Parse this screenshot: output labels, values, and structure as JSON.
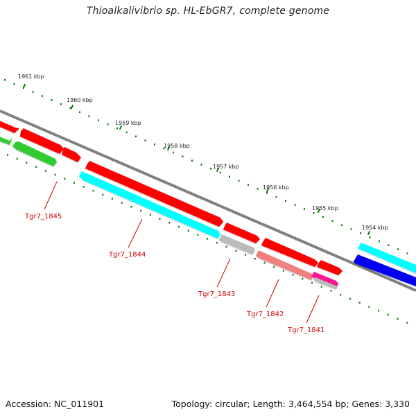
{
  "title": "Thioalkalivibrio sp. HL-EbGR7, complete genome",
  "footer": {
    "accession": "Accession: NC_011901",
    "summary": "Topology: circular; Length: 3,464,554 bp; Genes: 3,330"
  },
  "scale_labels": [
    "1961 kbp",
    "1960 kbp",
    "1959 kbp",
    "1958 kbp",
    "1957 kbp",
    "1956 kbp",
    "1955 kbp",
    "1954 kbp"
  ],
  "gene_labels": [
    "Tgr7_1845",
    "Tgr7_1844",
    "Tgr7_1843",
    "Tgr7_1842",
    "Tgr7_1841"
  ],
  "colors": {
    "backbone": "#808080",
    "scale_tick": "#006600",
    "label_line": "#cc0000",
    "red": "#ff0000",
    "green": "#33cc33",
    "cyan": "#00ffff",
    "grey": "#bbbbbb",
    "salmon": "#f08080",
    "magenta": "#ff1493",
    "blue": "#0000ee"
  }
}
